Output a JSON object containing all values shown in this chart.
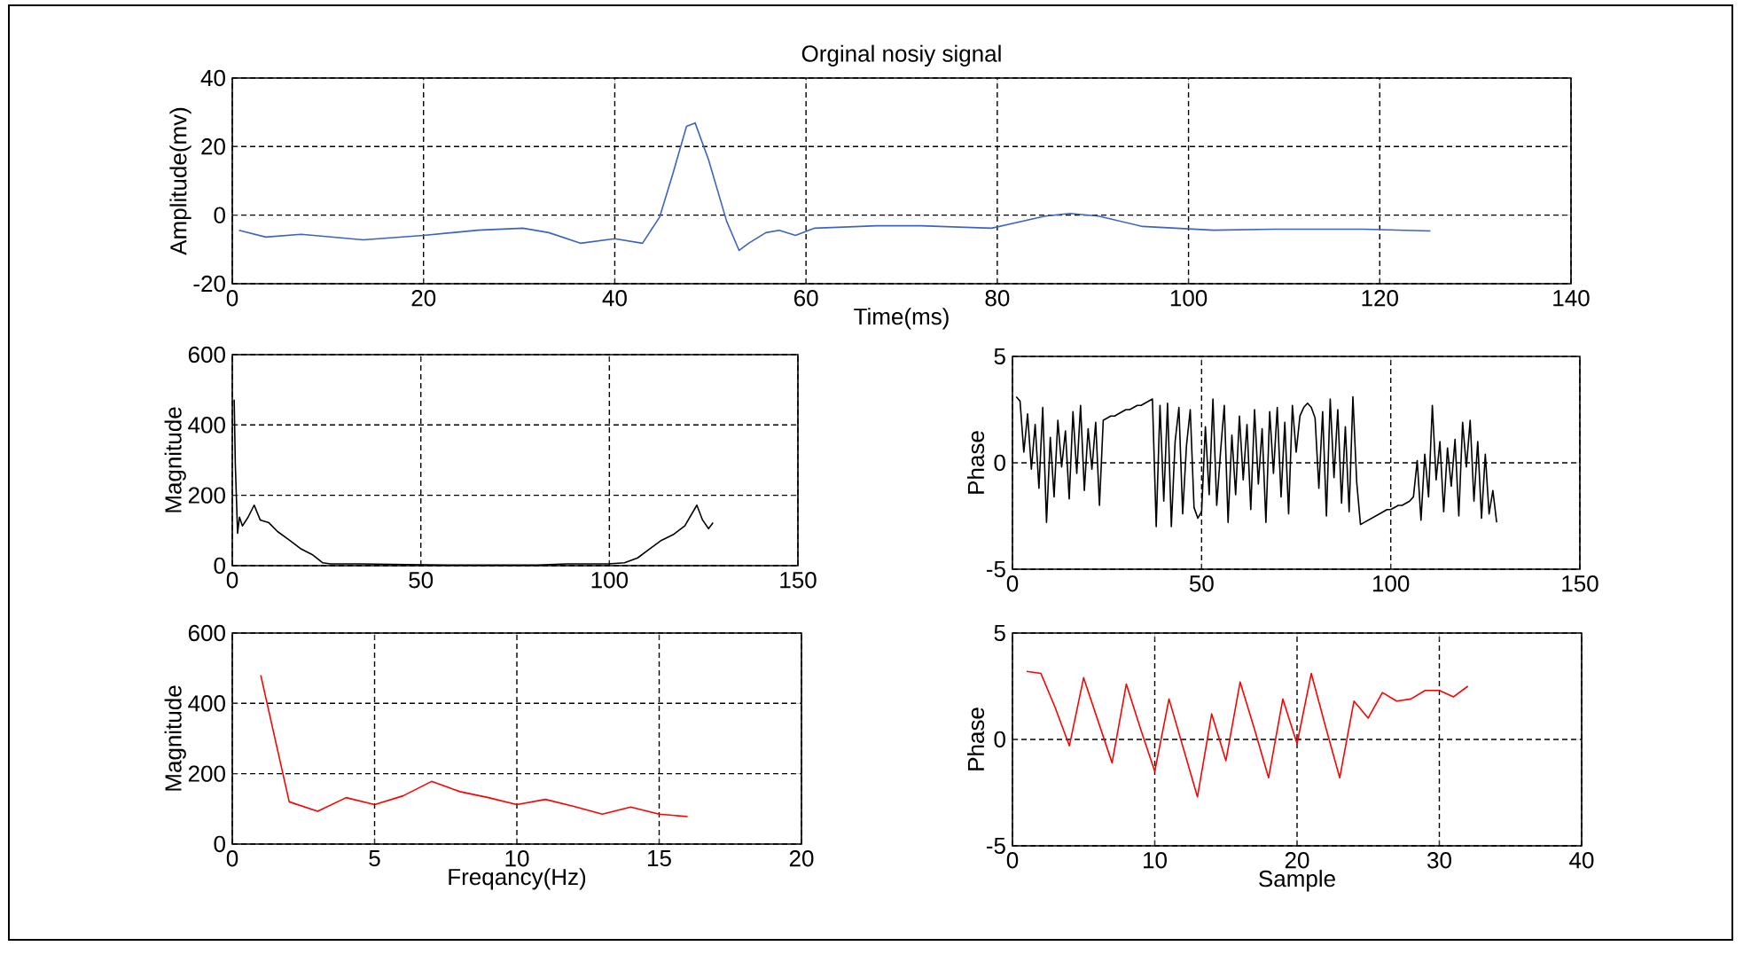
{
  "chart_data": [
    {
      "type": "line",
      "title": "Orginal nosiy signal",
      "xlabel": "Time(ms)",
      "ylabel": "Amplitude(mv)",
      "grid": true,
      "xlim": [
        0,
        140
      ],
      "ylim": [
        -20,
        40
      ],
      "xticks": [
        0,
        20,
        40,
        60,
        80,
        100,
        120,
        140
      ],
      "yticks": [
        -20,
        0,
        20,
        40
      ],
      "x": [
        0.7,
        3.5,
        7.2,
        13.7,
        20,
        25.7,
        30.4,
        33.1,
        36.4,
        40,
        42.9,
        44.7,
        46.1,
        47.5,
        48.4,
        49.8,
        51.7,
        53,
        54,
        55.8,
        57.2,
        58.9,
        60.9,
        67.4,
        72,
        79.4,
        85,
        87.6,
        90.6,
        95.2,
        102.6,
        109,
        118.3,
        125.3
      ],
      "series": [
        {
          "color": "#3e62c0",
          "values": [
            -4.4,
            -6.4,
            -5.6,
            -7.2,
            -5.9,
            -4.4,
            -3.8,
            -5.1,
            -8.2,
            -6.9,
            -8.2,
            -0.5,
            12.3,
            25.9,
            26.9,
            16.2,
            -1.8,
            -10.3,
            -8.2,
            -5.1,
            -4.4,
            -5.9,
            -3.8,
            -3.1,
            -3.1,
            -3.8,
            -0.3,
            0.5,
            -0.3,
            -3.3,
            -4.4,
            -4.1,
            -4.1,
            -4.6
          ]
        }
      ]
    },
    {
      "type": "line",
      "ylabel": "Magnitude",
      "grid": true,
      "xlim": [
        0,
        150
      ],
      "ylim": [
        0,
        600
      ],
      "xticks": [
        0,
        50,
        100,
        150
      ],
      "yticks": [
        0,
        200,
        400,
        600
      ],
      "x": [
        0.5,
        0.8,
        1.4,
        1.9,
        2.7,
        4.2,
        5.8,
        7.4,
        9.7,
        12,
        15.2,
        18.3,
        21.4,
        24,
        26,
        34,
        46.5,
        57.4,
        81,
        88.7,
        99.7,
        104,
        107.5,
        110.6,
        113.8,
        116.9,
        120,
        123.2,
        124.7,
        126.3,
        127.5
      ],
      "series": [
        {
          "color": "#000000",
          "values": [
            472,
            288,
            92,
            138,
            113,
            138,
            172,
            130,
            122,
            97,
            72,
            47,
            30,
            8,
            5,
            5,
            3,
            2,
            2,
            5,
            5,
            8,
            22,
            47,
            72,
            88,
            113,
            172,
            130,
            105,
            122
          ]
        }
      ]
    },
    {
      "type": "line",
      "ylabel": "Phase",
      "grid": true,
      "xlim": [
        0,
        150
      ],
      "ylim": [
        -5,
        5
      ],
      "xticks": [
        0,
        50,
        100,
        150
      ],
      "yticks": [
        -5,
        0,
        5
      ],
      "x": [
        1,
        2,
        3,
        4,
        5,
        6,
        7,
        8,
        9,
        10,
        11,
        12,
        13,
        14,
        15,
        16,
        17,
        18,
        19,
        20,
        21,
        22,
        23,
        24,
        25,
        26,
        27,
        28,
        29,
        30,
        31,
        32,
        33,
        34,
        35,
        36,
        37,
        38,
        39,
        40,
        41,
        42,
        43,
        44,
        45,
        46,
        47,
        48,
        49,
        50,
        51,
        52,
        53,
        54,
        55,
        56,
        57,
        58,
        59,
        60,
        61,
        62,
        63,
        64,
        65,
        66,
        67,
        68,
        69,
        70,
        71,
        72,
        73,
        74,
        75,
        76,
        77,
        78,
        79,
        80,
        81,
        82,
        83,
        84,
        85,
        86,
        87,
        88,
        89,
        90,
        91,
        92,
        93,
        94,
        95,
        96,
        97,
        98,
        99,
        100,
        101,
        102,
        103,
        104,
        105,
        106,
        107,
        108,
        109,
        110,
        111,
        112,
        113,
        114,
        115,
        116,
        117,
        118,
        119,
        120,
        121,
        122,
        123,
        124,
        125,
        126,
        127,
        128
      ],
      "series": [
        {
          "color": "#000000",
          "values": [
            3.1,
            2.9,
            0.5,
            2.3,
            -0.3,
            1.8,
            -1.2,
            2.6,
            -2.8,
            1.2,
            -1.6,
            2.0,
            -0.2,
            1.5,
            -1.7,
            2.4,
            -0.5,
            2.7,
            -1.3,
            1.6,
            -0.3,
            1.9,
            -2.0,
            2.0,
            2.1,
            2.2,
            2.2,
            2.3,
            2.4,
            2.5,
            2.5,
            2.6,
            2.7,
            2.7,
            2.8,
            2.9,
            3.0,
            -3.0,
            2.7,
            -1.8,
            2.8,
            -3.0,
            1.0,
            2.6,
            -2.4,
            0.8,
            2.5,
            -2.1,
            -2.6,
            -2.3,
            1.7,
            -1.5,
            3.0,
            -2.0,
            0.5,
            2.7,
            -2.8,
            1.3,
            -1.5,
            2.2,
            -0.8,
            1.8,
            -2.2,
            2.5,
            -1.0,
            1.6,
            -2.8,
            2.4,
            -0.5,
            2.6,
            -1.6,
            1.9,
            -2.4,
            2.7,
            0.5,
            2.2,
            2.6,
            2.8,
            2.6,
            2.1,
            -1.2,
            2.4,
            -2.5,
            3.0,
            -0.7,
            2.5,
            -1.9,
            1.7,
            -2.3,
            3.1,
            -0.9,
            -2.9,
            -2.8,
            -2.7,
            -2.6,
            -2.5,
            -2.4,
            -2.3,
            -2.2,
            -2.2,
            -2.1,
            -2.0,
            -2.0,
            -1.9,
            -1.8,
            -1.6,
            0.1,
            -2.7,
            0.4,
            -1.6,
            2.7,
            -0.8,
            1.0,
            -2.3,
            0.7,
            -1.1,
            1.1,
            -2.5,
            1.9,
            -0.2,
            2.0,
            -1.8,
            1.0,
            -2.6,
            0.4,
            -2.4,
            -1.3,
            -2.8
          ]
        }
      ]
    },
    {
      "type": "line",
      "xlabel": "Freqancy(Hz)",
      "ylabel": "Magnitude",
      "grid": true,
      "xlim": [
        0,
        20
      ],
      "ylim": [
        0,
        600
      ],
      "xticks": [
        0,
        5,
        10,
        15,
        20
      ],
      "yticks": [
        0,
        200,
        400,
        600
      ],
      "x": [
        1,
        2,
        3,
        4,
        5,
        6,
        7,
        8,
        9,
        10,
        11,
        12,
        13,
        14,
        15,
        16
      ],
      "series": [
        {
          "color": "#ff0000",
          "values": [
            480,
            120,
            93,
            132,
            112,
            137,
            178,
            149,
            132,
            112,
            127,
            107,
            85,
            105,
            85,
            78
          ]
        }
      ]
    },
    {
      "type": "line",
      "xlabel": "Sample",
      "ylabel": "Phase",
      "grid": true,
      "xlim": [
        0,
        40
      ],
      "ylim": [
        -5,
        5
      ],
      "xticks": [
        0,
        10,
        20,
        30,
        40
      ],
      "yticks": [
        -5,
        0,
        5
      ],
      "x": [
        1,
        2,
        3,
        4,
        5,
        6,
        7,
        8,
        9,
        10,
        11,
        12,
        13,
        14,
        15,
        16,
        17,
        18,
        19,
        20,
        21,
        22,
        23,
        24,
        25,
        26,
        27,
        28,
        29,
        30,
        31,
        32
      ],
      "series": [
        {
          "color": "#ff0000",
          "values": [
            3.2,
            3.1,
            1.5,
            -0.3,
            2.9,
            0.9,
            -1.1,
            2.6,
            0.5,
            -1.5,
            1.9,
            -0.4,
            -2.7,
            1.2,
            -1.0,
            2.7,
            0.5,
            -1.8,
            1.9,
            -0.2,
            3.1,
            0.6,
            -1.8,
            1.8,
            1.0,
            2.2,
            1.8,
            1.9,
            2.3,
            2.3,
            2.0,
            2.5
          ]
        }
      ]
    }
  ]
}
